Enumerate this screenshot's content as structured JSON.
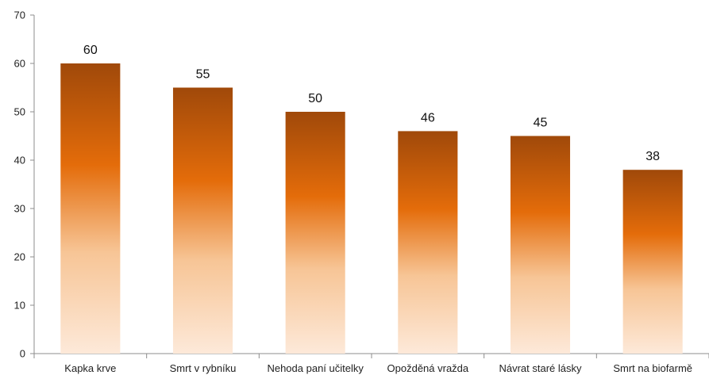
{
  "chart_data": {
    "type": "bar",
    "categories": [
      "Kapka krve",
      "Smrt v rybníku",
      "Nehoda paní učitelky",
      "Opožděná vražda",
      "Návrat staré lásky",
      "Smrt na biofarmě"
    ],
    "values": [
      60,
      55,
      50,
      46,
      45,
      38
    ],
    "ylim": [
      0,
      70
    ],
    "yticks": [
      0,
      10,
      20,
      30,
      40,
      50,
      60,
      70
    ],
    "grid": false,
    "legend": "none",
    "data_labels": true,
    "colors": {
      "bar_top": "#a0490a",
      "bar_mid": "#e46c0a",
      "bar_light": "#f7c596",
      "bar_bottom": "#fde9d9",
      "axis": "#8c8c8c"
    }
  }
}
